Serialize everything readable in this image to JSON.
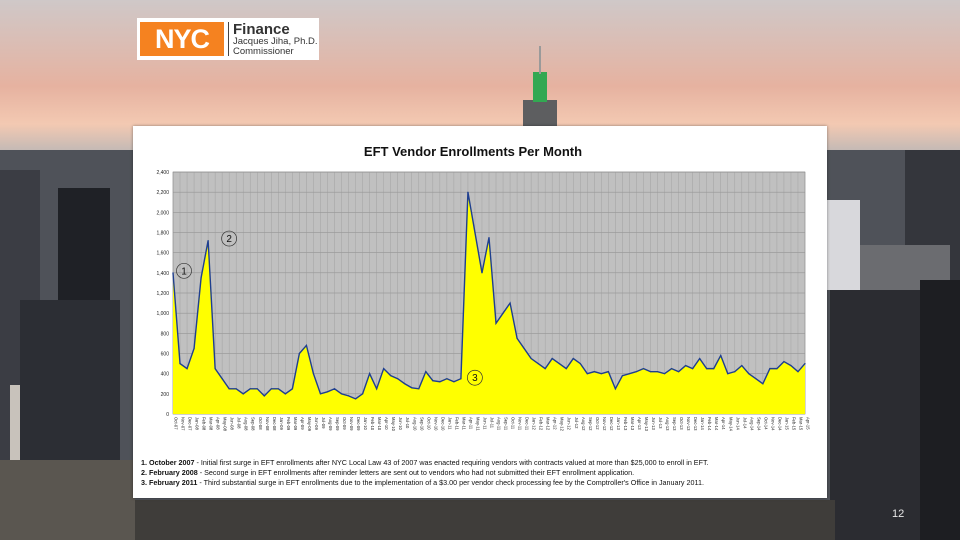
{
  "logo": {
    "brand": "NYC",
    "title": "Finance",
    "name": "Jacques Jiha, Ph.D.",
    "role": "Commissioner",
    "brand_color": "#f58220"
  },
  "slide_number": "12",
  "chart_data": {
    "type": "area",
    "title": "EFT Vendor Enrollments Per Month",
    "ylim": [
      0,
      2400
    ],
    "yticks": [
      "0",
      "200",
      "400",
      "600",
      "800",
      "1,000",
      "1,200",
      "1,400",
      "1,600",
      "1,800",
      "2,000",
      "2,200",
      "2,400"
    ],
    "grid": true,
    "fill_color": "#ffff00",
    "line_color": "#1f3f8f",
    "plot_background": "#c0c0c0",
    "x": [
      "Oct-07",
      "Nov-07",
      "Dec-07",
      "Jan-08",
      "Feb-08",
      "Mar-08",
      "Apr-08",
      "May-08",
      "Jun-08",
      "Jul-08",
      "Aug-08",
      "Sep-08",
      "Oct-08",
      "Nov-08",
      "Dec-08",
      "Jan-09",
      "Feb-09",
      "Mar-09",
      "Apr-09",
      "May-09",
      "Jun-09",
      "Jul-09",
      "Aug-09",
      "Sep-09",
      "Oct-09",
      "Nov-09",
      "Dec-09",
      "Jan-10",
      "Feb-10",
      "Mar-10",
      "Apr-10",
      "May-10",
      "Jun-10",
      "Jul-10",
      "Aug-10",
      "Sep-10",
      "Oct-10",
      "Nov-10",
      "Dec-10",
      "Jan-11",
      "Feb-11",
      "Mar-11",
      "Apr-11",
      "May-11",
      "Jun-11",
      "Jul-11",
      "Aug-11",
      "Sep-11",
      "Oct-11",
      "Nov-11",
      "Dec-11",
      "Jan-12",
      "Feb-12",
      "Mar-12",
      "Apr-12",
      "May-12",
      "Jun-12",
      "Jul-12",
      "Aug-12",
      "Sep-12",
      "Oct-12",
      "Nov-12",
      "Dec-12",
      "Jan-13",
      "Feb-13",
      "Mar-13",
      "Apr-13",
      "May-13",
      "Jun-13",
      "Jul-13",
      "Aug-13",
      "Sep-13",
      "Oct-13",
      "Nov-13",
      "Dec-13",
      "Jan-14",
      "Feb-14",
      "Mar-14",
      "Apr-14",
      "May-14",
      "Jun-14",
      "Jul-14",
      "Aug-14",
      "Sep-14",
      "Oct-14",
      "Nov-14",
      "Dec-14",
      "Jan-15",
      "Feb-15",
      "Mar-15",
      "Apr-15"
    ],
    "series": [
      {
        "values": [
          1400,
          500,
          450,
          650,
          1350,
          1720,
          450,
          350,
          250,
          250,
          200,
          250,
          250,
          180,
          250,
          250,
          200,
          250,
          600,
          680,
          400,
          200,
          220,
          250,
          200,
          180,
          150,
          200,
          400,
          250,
          450,
          380,
          350,
          300,
          260,
          250,
          420,
          330,
          320,
          350,
          320,
          350,
          2200,
          1800,
          1400,
          1750,
          900,
          1000,
          1100,
          750,
          650,
          550,
          500,
          450,
          550,
          500,
          450,
          550,
          500,
          400,
          420,
          400,
          420,
          250,
          380,
          400,
          420,
          450,
          420,
          420,
          400,
          450,
          420,
          480,
          450,
          550,
          450,
          450,
          580,
          400,
          420,
          480,
          400,
          350,
          300,
          450,
          450,
          520,
          480,
          420,
          500
        ]
      }
    ],
    "annotations": [
      {
        "label": "1",
        "x": "Oct-07"
      },
      {
        "label": "2",
        "x": "Mar-08"
      },
      {
        "label": "3",
        "x": "Feb-11"
      }
    ],
    "notes": [
      {
        "num": "1. October 2007",
        "text": " - Initial first surge in EFT enrollments after NYC Local Law 43 of 2007 was enacted requiring vendors with contracts valued at more than $25,000 to enroll in EFT."
      },
      {
        "num": "2. February 2008",
        "text": " - Second surge in EFT enrollments after reminder letters are sent out to vendors who had not submitted their EFT enrollment application."
      },
      {
        "num": "3. February 2011",
        "text": " - Third substantial surge in EFT enrollments due to the implementation of a $3.00 per vendor check processing fee by the Comptroller's Office in January 2011."
      }
    ]
  }
}
